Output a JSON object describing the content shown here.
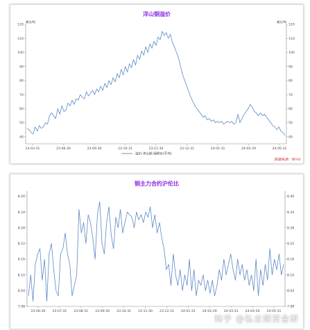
{
  "chart_data": [
    {
      "type": "line",
      "title": "洋山铜溢价",
      "unit_left": "美元/吨",
      "unit_right": "美元/吨",
      "ylim": [
        35,
        120
      ],
      "yticks": [
        40,
        50,
        60,
        70,
        80,
        90,
        100,
        110,
        120
      ],
      "x_ticks": [
        "23-03-31",
        "23-06-30",
        "23-09-30",
        "23-10-31",
        "23-11-30",
        "23-12-31",
        "24-01-31",
        "24-02-29",
        "24-05-31"
      ],
      "series": [
        {
          "name": "溢价:洋山铜:保税价(平均)",
          "color": "#5b87c5",
          "values": [
            46,
            45,
            43,
            42,
            47,
            44,
            48,
            46,
            47,
            50,
            49,
            55,
            57,
            55,
            53,
            60,
            56,
            62,
            58,
            59,
            64,
            62,
            66,
            63,
            67,
            66,
            70,
            68,
            67,
            72,
            69,
            71,
            73,
            70,
            74,
            72,
            76,
            73,
            78,
            75,
            80,
            77,
            82,
            79,
            85,
            82,
            88,
            84,
            90,
            86,
            92,
            89,
            95,
            91,
            98,
            95,
            101,
            98,
            104,
            100,
            106,
            103,
            108,
            105,
            111,
            109,
            115,
            112,
            114,
            110,
            113,
            107,
            104,
            100,
            96,
            90,
            84,
            80,
            76,
            72,
            68,
            65,
            62,
            60,
            58,
            56,
            54,
            55,
            52,
            53,
            51,
            52,
            50,
            51,
            50,
            51,
            49,
            50,
            51,
            50,
            51,
            49,
            50,
            56,
            50,
            53,
            56,
            58,
            60,
            63,
            61,
            58,
            57,
            55,
            57,
            55,
            56,
            54,
            52,
            50,
            48,
            47,
            45,
            47,
            44,
            43,
            41
          ]
        }
      ],
      "source_text": "数据来源：Wind"
    },
    {
      "type": "line",
      "title": "铜主力合约沪伦比",
      "ylim": [
        7.98,
        8.42
      ],
      "yticks": [
        "7.98",
        "8.04",
        "8.10",
        "8.16",
        "8.22",
        "8.28",
        "8.34",
        "8.40"
      ],
      "x_ticks": [
        "23-06-30",
        "23-07-31",
        "23-08-31",
        "23-09-30",
        "23-10-31",
        "23-11-30",
        "23-12-31",
        "24-01-31",
        "24-02-29",
        "24-03-31",
        "24-04-30",
        "24-05-31"
      ],
      "series": [
        {
          "name": "",
          "color": "#5b87c5",
          "values": [
            8.02,
            8.1,
            8.0,
            8.14,
            8.18,
            8.2,
            8.08,
            8.16,
            8.0,
            8.18,
            8.22,
            8.12,
            8.04,
            8.02,
            8.18,
            8.2,
            8.26,
            8.18,
            8.14,
            8.02,
            8.06,
            8.1,
            8.35,
            8.26,
            8.3,
            8.22,
            8.33,
            8.3,
            8.24,
            8.16,
            8.33,
            8.38,
            8.22,
            8.18,
            8.3,
            8.36,
            8.25,
            8.2,
            8.32,
            8.28,
            8.35,
            8.26,
            8.3,
            8.34,
            8.33,
            8.32,
            8.28,
            8.34,
            8.31,
            8.33,
            8.3,
            8.34,
            8.32,
            8.36,
            8.28,
            8.33,
            8.26,
            8.3,
            8.24,
            8.2,
            8.12,
            8.14,
            8.06,
            8.18,
            8.1,
            8.06,
            8.12,
            8.04,
            8.1,
            8.06,
            8.16,
            8.04,
            8.12,
            8.02,
            8.08,
            8.06,
            8.1,
            8.04,
            8.08,
            8.03,
            8.08,
            8.02,
            8.06,
            8.12,
            8.08,
            8.16,
            8.1,
            8.14,
            8.18,
            8.12,
            8.08,
            8.16,
            8.1,
            8.14,
            8.08,
            8.12,
            8.06,
            8.1,
            8.04,
            8.16,
            8.02,
            8.12,
            8.06,
            8.14,
            8.08,
            8.2,
            8.1,
            8.16,
            8.12,
            8.18,
            8.1,
            8.14
          ]
        }
      ]
    }
  ],
  "watermark": "知乎 @弘业期货金研"
}
